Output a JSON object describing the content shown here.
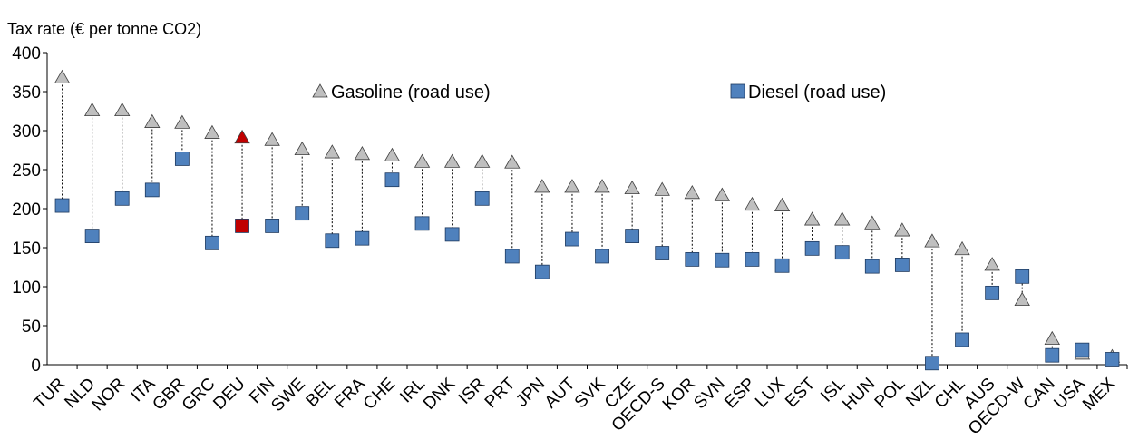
{
  "chart_data": {
    "type": "scatter",
    "ylabel": "Tax rate (€ per tonne CO2)",
    "ylim": [
      0,
      400
    ],
    "yticks": [
      0,
      50,
      100,
      150,
      200,
      250,
      300,
      350,
      400
    ],
    "categories": [
      "TUR",
      "NLD",
      "NOR",
      "ITA",
      "GBR",
      "GRC",
      "DEU",
      "FIN",
      "SWE",
      "BEL",
      "FRA",
      "CHE",
      "IRL",
      "DNK",
      "ISR",
      "PRT",
      "JPN",
      "AUT",
      "SVK",
      "CZE",
      "OECD-S",
      "KOR",
      "SVN",
      "ESP",
      "LUX",
      "EST",
      "ISL",
      "HUN",
      "POL",
      "NZL",
      "CHL",
      "AUS",
      "OECD-W",
      "CAN",
      "USA",
      "MEX"
    ],
    "highlight": "DEU",
    "grid": false,
    "legend_position": "top-center",
    "series": [
      {
        "name": "Gasoline (road use)",
        "marker": "triangle",
        "color": "#BFBFBF",
        "values": [
          368,
          326,
          326,
          311,
          310,
          297,
          291,
          288,
          276,
          272,
          270,
          268,
          260,
          260,
          260,
          259,
          228,
          228,
          228,
          226,
          224,
          220,
          217,
          205,
          204,
          186,
          186,
          181,
          172,
          158,
          148,
          128,
          83,
          33,
          14,
          10
        ]
      },
      {
        "name": "Diesel (road use)",
        "marker": "square",
        "color": "#4F81BD",
        "values": [
          204,
          165,
          213,
          224,
          264,
          156,
          178,
          178,
          194,
          159,
          162,
          237,
          181,
          167,
          213,
          139,
          119,
          161,
          139,
          165,
          143,
          135,
          134,
          135,
          127,
          149,
          144,
          126,
          128,
          2,
          32,
          92,
          113,
          12,
          19,
          7
        ]
      }
    ],
    "highlight_color": "#C00000"
  }
}
